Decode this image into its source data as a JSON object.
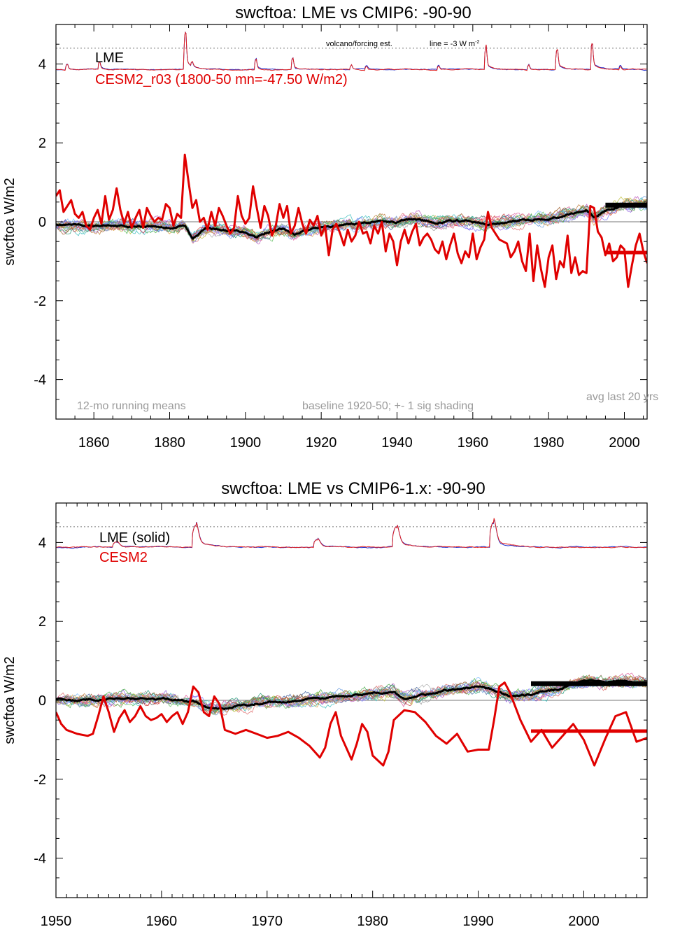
{
  "chart_data": [
    {
      "type": "line",
      "title": "swcftoa: LME vs CMIP6: -90-90",
      "ylabel": "swcftoa W/m2",
      "xlabel": "",
      "xlim": [
        1850,
        2006
      ],
      "ylim": [
        -5,
        5
      ],
      "xticks": [
        1860,
        1880,
        1900,
        1920,
        1940,
        1960,
        1980,
        2000
      ],
      "yticks": [
        -4,
        -2,
        0,
        2,
        4
      ],
      "grid": false,
      "legend": [
        "LME",
        "CESM2_r03 (1800-50 mn=-47.50 W/m2)"
      ],
      "legend_colors": [
        "#000000",
        "#e00000"
      ],
      "annotations": {
        "volcano": "volcano/forcing est.",
        "line_note": "line = -3 W m",
        "line_note_sup": "-2",
        "running": "12-mo running means",
        "baseline": "baseline 1920-50; +- 1 sig shading",
        "avg": "avg last 20 yrs"
      },
      "reference_line_y": 4.4,
      "volcano_baseline": 3.86,
      "volcano_peaks": [
        {
          "x": 1853.0,
          "h": 0.15
        },
        {
          "x": 1861.5,
          "h": 0.18
        },
        {
          "x": 1884.2,
          "h": 0.95
        },
        {
          "x": 1886.0,
          "h": 0.1
        },
        {
          "x": 1902.8,
          "h": 0.25
        },
        {
          "x": 1912.5,
          "h": 0.28
        },
        {
          "x": 1928.0,
          "h": 0.1
        },
        {
          "x": 1932.0,
          "h": 0.1
        },
        {
          "x": 1951.0,
          "h": 0.1
        },
        {
          "x": 1963.5,
          "h": 0.55
        },
        {
          "x": 1974.8,
          "h": 0.12
        },
        {
          "x": 1982.3,
          "h": 0.52
        },
        {
          "x": 1991.5,
          "h": 0.66
        },
        {
          "x": 1999.0,
          "h": 0.08
        }
      ],
      "lme_mean": [
        [
          1850,
          -0.05
        ],
        [
          1855,
          -0.1
        ],
        [
          1860,
          -0.12
        ],
        [
          1865,
          -0.08
        ],
        [
          1870,
          -0.12
        ],
        [
          1875,
          -0.1
        ],
        [
          1880,
          -0.15
        ],
        [
          1884,
          -0.1
        ],
        [
          1886,
          -0.42
        ],
        [
          1888,
          -0.25
        ],
        [
          1890,
          -0.15
        ],
        [
          1895,
          -0.22
        ],
        [
          1900,
          -0.25
        ],
        [
          1903,
          -0.38
        ],
        [
          1906,
          -0.25
        ],
        [
          1910,
          -0.18
        ],
        [
          1913,
          -0.35
        ],
        [
          1916,
          -0.22
        ],
        [
          1920,
          -0.15
        ],
        [
          1925,
          -0.1
        ],
        [
          1930,
          -0.05
        ],
        [
          1935,
          0.02
        ],
        [
          1940,
          0.0
        ],
        [
          1945,
          0.08
        ],
        [
          1950,
          -0.02
        ],
        [
          1955,
          0.02
        ],
        [
          1960,
          0.0
        ],
        [
          1964,
          -0.08
        ],
        [
          1966,
          -0.05
        ],
        [
          1970,
          0.0
        ],
        [
          1975,
          0.05
        ],
        [
          1980,
          0.1
        ],
        [
          1985,
          0.18
        ],
        [
          1990,
          0.3
        ],
        [
          1992,
          0.12
        ],
        [
          1995,
          0.3
        ],
        [
          2000,
          0.42
        ],
        [
          2006,
          0.45
        ]
      ],
      "cesm2": [
        [
          1850,
          0.65
        ],
        [
          1851,
          0.8
        ],
        [
          1852,
          0.25
        ],
        [
          1853,
          0.4
        ],
        [
          1854,
          0.55
        ],
        [
          1855,
          0.2
        ],
        [
          1856,
          0.1
        ],
        [
          1857,
          0.25
        ],
        [
          1858,
          -0.1
        ],
        [
          1859,
          -0.2
        ],
        [
          1860,
          0.1
        ],
        [
          1861,
          0.3
        ],
        [
          1862,
          -0.05
        ],
        [
          1863,
          0.65
        ],
        [
          1864,
          0.05
        ],
        [
          1865,
          0.3
        ],
        [
          1866,
          0.85
        ],
        [
          1867,
          0.3
        ],
        [
          1868,
          -0.05
        ],
        [
          1869,
          0.25
        ],
        [
          1870,
          -0.15
        ],
        [
          1871,
          0.1
        ],
        [
          1872,
          0.3
        ],
        [
          1873,
          -0.15
        ],
        [
          1874,
          0.35
        ],
        [
          1875,
          0.15
        ],
        [
          1876,
          0.0
        ],
        [
          1877,
          0.1
        ],
        [
          1878,
          0.05
        ],
        [
          1879,
          0.45
        ],
        [
          1880,
          0.35
        ],
        [
          1881,
          -0.1
        ],
        [
          1882,
          0.2
        ],
        [
          1883,
          0.1
        ],
        [
          1884,
          1.7
        ],
        [
          1885,
          1.0
        ],
        [
          1886,
          0.35
        ],
        [
          1887,
          0.55
        ],
        [
          1888,
          0.0
        ],
        [
          1889,
          0.1
        ],
        [
          1890,
          -0.2
        ],
        [
          1891,
          0.25
        ],
        [
          1892,
          -0.1
        ],
        [
          1893,
          0.35
        ],
        [
          1894,
          0.15
        ],
        [
          1895,
          -0.1
        ],
        [
          1896,
          -0.3
        ],
        [
          1897,
          -0.15
        ],
        [
          1898,
          0.65
        ],
        [
          1899,
          0.15
        ],
        [
          1900,
          -0.05
        ],
        [
          1901,
          0.1
        ],
        [
          1902,
          0.9
        ],
        [
          1903,
          0.35
        ],
        [
          1904,
          -0.15
        ],
        [
          1905,
          0.4
        ],
        [
          1906,
          0.15
        ],
        [
          1907,
          -0.35
        ],
        [
          1908,
          -0.1
        ],
        [
          1909,
          0.45
        ],
        [
          1910,
          0.1
        ],
        [
          1911,
          0.4
        ],
        [
          1912,
          -0.3
        ],
        [
          1913,
          -0.1
        ],
        [
          1914,
          0.35
        ],
        [
          1915,
          -0.05
        ],
        [
          1916,
          -0.3
        ],
        [
          1917,
          0.05
        ],
        [
          1918,
          -0.1
        ],
        [
          1919,
          0.15
        ],
        [
          1920,
          -0.35
        ],
        [
          1921,
          -0.1
        ],
        [
          1922,
          -0.85
        ],
        [
          1923,
          -0.2
        ],
        [
          1924,
          -0.05
        ],
        [
          1925,
          -0.3
        ],
        [
          1926,
          -0.6
        ],
        [
          1927,
          -0.2
        ],
        [
          1928,
          -0.5
        ],
        [
          1929,
          -0.35
        ],
        [
          1930,
          0.0
        ],
        [
          1931,
          -0.3
        ],
        [
          1932,
          -0.25
        ],
        [
          1933,
          -0.55
        ],
        [
          1934,
          -0.1
        ],
        [
          1935,
          -0.3
        ],
        [
          1936,
          0.0
        ],
        [
          1937,
          -0.75
        ],
        [
          1938,
          -0.3
        ],
        [
          1939,
          -0.5
        ],
        [
          1940,
          -1.1
        ],
        [
          1941,
          -0.5
        ],
        [
          1942,
          -0.2
        ],
        [
          1943,
          -0.55
        ],
        [
          1944,
          -0.25
        ],
        [
          1945,
          -0.05
        ],
        [
          1946,
          -0.6
        ],
        [
          1947,
          -0.4
        ],
        [
          1948,
          -0.3
        ],
        [
          1949,
          -0.45
        ],
        [
          1950,
          -0.7
        ],
        [
          1951,
          -0.8
        ],
        [
          1952,
          -0.5
        ],
        [
          1953,
          -0.95
        ],
        [
          1954,
          -0.6
        ],
        [
          1955,
          -0.3
        ],
        [
          1956,
          -0.8
        ],
        [
          1957,
          -1.05
        ],
        [
          1958,
          -0.75
        ],
        [
          1959,
          -0.9
        ],
        [
          1960,
          -0.3
        ],
        [
          1961,
          -0.95
        ],
        [
          1962,
          -0.65
        ],
        [
          1963,
          -0.45
        ],
        [
          1964,
          0.25
        ],
        [
          1965,
          -0.15
        ],
        [
          1966,
          -0.3
        ],
        [
          1967,
          -0.45
        ],
        [
          1968,
          -0.5
        ],
        [
          1969,
          -0.55
        ],
        [
          1970,
          -0.9
        ],
        [
          1971,
          -0.75
        ],
        [
          1972,
          -0.5
        ],
        [
          1973,
          -1.0
        ],
        [
          1974,
          -1.25
        ],
        [
          1975,
          -0.3
        ],
        [
          1976,
          -1.5
        ],
        [
          1977,
          -0.6
        ],
        [
          1978,
          -1.2
        ],
        [
          1979,
          -1.65
        ],
        [
          1980,
          -0.9
        ],
        [
          1981,
          -0.6
        ],
        [
          1982,
          -1.45
        ],
        [
          1983,
          -1.0
        ],
        [
          1984,
          -1.15
        ],
        [
          1985,
          -0.35
        ],
        [
          1986,
          -1.3
        ],
        [
          1987,
          -0.9
        ],
        [
          1988,
          -1.35
        ],
        [
          1989,
          -1.25
        ],
        [
          1990,
          -1.3
        ],
        [
          1991,
          0.4
        ],
        [
          1992,
          0.35
        ],
        [
          1993,
          -0.25
        ],
        [
          1994,
          -0.4
        ],
        [
          1995,
          -0.85
        ],
        [
          1996,
          -0.55
        ],
        [
          1997,
          -1.0
        ],
        [
          1998,
          -0.9
        ],
        [
          1999,
          -0.6
        ],
        [
          2000,
          -0.7
        ],
        [
          2001,
          -1.65
        ],
        [
          2002,
          -1.1
        ],
        [
          2003,
          -0.6
        ],
        [
          2004,
          -0.3
        ],
        [
          2005,
          -0.75
        ],
        [
          2006,
          -1.05
        ]
      ],
      "avg_black": {
        "x0": 1995,
        "x1": 2006,
        "y": 0.42
      },
      "avg_red": {
        "x0": 1995,
        "x1": 2006,
        "y": -0.78
      }
    },
    {
      "type": "line",
      "title": "swcftoa: LME vs CMIP6-1.x: -90-90",
      "ylabel": "swcftoa W/m2",
      "xlabel": "",
      "xlim": [
        1950,
        2006
      ],
      "ylim": [
        -5,
        5
      ],
      "xticks": [
        1950,
        1960,
        1970,
        1980,
        1990,
        2000
      ],
      "yticks": [
        -4,
        -2,
        0,
        2,
        4
      ],
      "grid": false,
      "legend": [
        "LME (solid)",
        "CESM2"
      ],
      "legend_colors": [
        "#000000",
        "#e00000"
      ],
      "reference_line_y": 4.4,
      "volcano_baseline": 3.88,
      "volcano_peaks": [
        {
          "x": 1955.8,
          "h": 0.12
        },
        {
          "x": 1963.3,
          "h": 0.55
        },
        {
          "x": 1974.8,
          "h": 0.2
        },
        {
          "x": 1982.3,
          "h": 0.5
        },
        {
          "x": 1991.5,
          "h": 0.62
        }
      ],
      "lme_mean": [
        [
          1950,
          0.05
        ],
        [
          1952,
          0.0
        ],
        [
          1954,
          0.02
        ],
        [
          1956,
          0.05
        ],
        [
          1958,
          0.05
        ],
        [
          1960,
          0.05
        ],
        [
          1962,
          0.0
        ],
        [
          1963.5,
          -0.05
        ],
        [
          1965,
          -0.22
        ],
        [
          1967,
          -0.15
        ],
        [
          1970,
          -0.05
        ],
        [
          1972,
          -0.03
        ],
        [
          1975,
          0.05
        ],
        [
          1978,
          0.1
        ],
        [
          1980,
          0.18
        ],
        [
          1982,
          0.2
        ],
        [
          1983,
          0.05
        ],
        [
          1985,
          0.15
        ],
        [
          1987,
          0.25
        ],
        [
          1990,
          0.35
        ],
        [
          1992,
          0.2
        ],
        [
          1993,
          0.1
        ],
        [
          1995,
          0.15
        ],
        [
          1997,
          0.25
        ],
        [
          1999,
          0.4
        ],
        [
          2000,
          0.5
        ],
        [
          2002,
          0.45
        ],
        [
          2004,
          0.5
        ],
        [
          2006,
          0.42
        ]
      ],
      "cesm2": [
        [
          1950,
          -0.3
        ],
        [
          1950.5,
          -0.6
        ],
        [
          1951,
          -0.75
        ],
        [
          1952,
          -0.85
        ],
        [
          1953,
          -0.9
        ],
        [
          1953.5,
          -0.85
        ],
        [
          1954,
          -0.4
        ],
        [
          1954.5,
          0.1
        ],
        [
          1955,
          -0.3
        ],
        [
          1955.5,
          -0.8
        ],
        [
          1956,
          -0.45
        ],
        [
          1956.5,
          -0.25
        ],
        [
          1957,
          -0.55
        ],
        [
          1957.5,
          -0.4
        ],
        [
          1958,
          -0.15
        ],
        [
          1958.5,
          -0.4
        ],
        [
          1959,
          -0.5
        ],
        [
          1959.5,
          -0.45
        ],
        [
          1960,
          -0.35
        ],
        [
          1960.5,
          -0.55
        ],
        [
          1961,
          -0.4
        ],
        [
          1961.5,
          -0.3
        ],
        [
          1962,
          -0.6
        ],
        [
          1962.5,
          -0.3
        ],
        [
          1963,
          0.35
        ],
        [
          1963.5,
          0.2
        ],
        [
          1964,
          -0.3
        ],
        [
          1964.5,
          -0.4
        ],
        [
          1965,
          0.1
        ],
        [
          1965.5,
          -0.1
        ],
        [
          1966,
          -0.75
        ],
        [
          1967,
          -0.85
        ],
        [
          1968,
          -0.75
        ],
        [
          1969,
          -0.85
        ],
        [
          1970,
          -0.95
        ],
        [
          1971,
          -0.9
        ],
        [
          1972,
          -0.8
        ],
        [
          1973,
          -0.95
        ],
        [
          1974,
          -1.15
        ],
        [
          1975,
          -1.45
        ],
        [
          1975.5,
          -1.2
        ],
        [
          1976,
          -0.6
        ],
        [
          1976.5,
          -0.3
        ],
        [
          1977,
          -0.9
        ],
        [
          1978,
          -1.5
        ],
        [
          1978.5,
          -1.1
        ],
        [
          1979,
          -0.6
        ],
        [
          1979.5,
          -0.8
        ],
        [
          1980,
          -1.4
        ],
        [
          1981,
          -1.65
        ],
        [
          1981.5,
          -1.3
        ],
        [
          1982,
          -0.5
        ],
        [
          1983,
          -0.25
        ],
        [
          1984,
          -0.3
        ],
        [
          1985,
          -0.55
        ],
        [
          1986,
          -0.9
        ],
        [
          1987,
          -1.1
        ],
        [
          1988,
          -0.85
        ],
        [
          1989,
          -1.3
        ],
        [
          1990,
          -1.25
        ],
        [
          1991,
          -1.25
        ],
        [
          1991.5,
          -0.5
        ],
        [
          1992,
          0.35
        ],
        [
          1992.5,
          0.45
        ],
        [
          1993,
          0.2
        ],
        [
          1994,
          -0.5
        ],
        [
          1995,
          -1.05
        ],
        [
          1996,
          -0.75
        ],
        [
          1997,
          -1.2
        ],
        [
          1998,
          -0.9
        ],
        [
          1999,
          -0.6
        ],
        [
          2000,
          -1.0
        ],
        [
          2001,
          -1.65
        ],
        [
          2002,
          -1.0
        ],
        [
          2003,
          -0.4
        ],
        [
          2004,
          -0.3
        ],
        [
          2005,
          -1.05
        ],
        [
          2006,
          -0.95
        ]
      ],
      "avg_black": {
        "x0": 1995,
        "x1": 2006,
        "y": 0.42
      },
      "avg_red": {
        "x0": 1995,
        "x1": 2006,
        "y": -0.78
      }
    }
  ]
}
